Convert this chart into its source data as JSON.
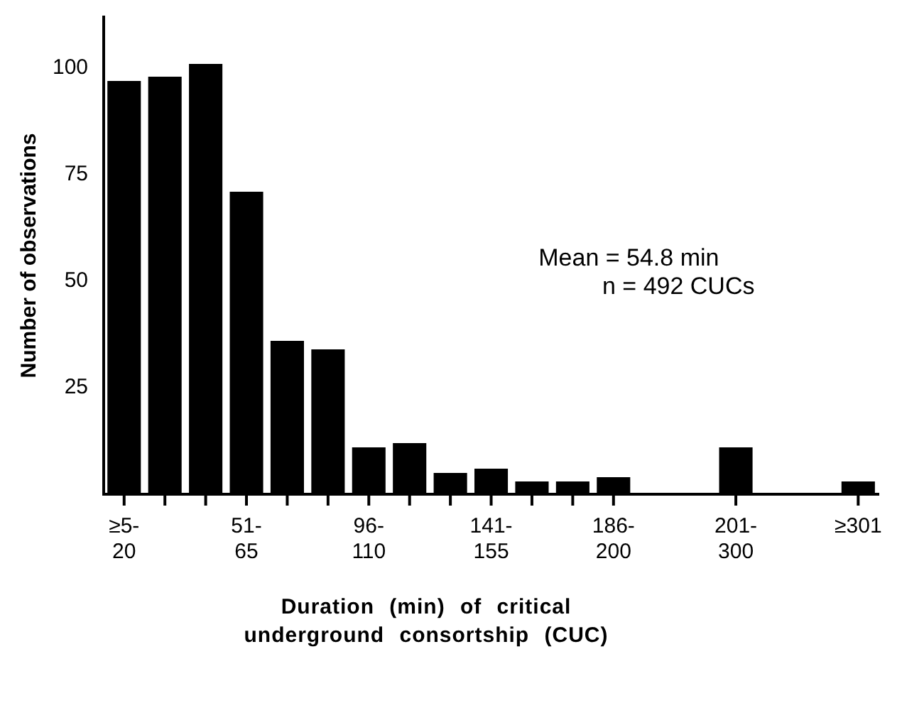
{
  "chart_data": {
    "type": "bar",
    "xlabel": "Duration (min) of critical underground consortship (CUC)",
    "ylabel": "Number of observations",
    "categories": [
      "≥5-20",
      null,
      null,
      "51-65",
      null,
      null,
      "96-110",
      null,
      null,
      "141-155",
      null,
      null,
      "186-200",
      null,
      null,
      "201-300",
      null,
      null,
      "≥301"
    ],
    "values": [
      97,
      98,
      101,
      71,
      36,
      34,
      11,
      12,
      5,
      6,
      3,
      3,
      4,
      null,
      null,
      11,
      null,
      null,
      3
    ],
    "color": "#000000",
    "ylim": [
      0,
      112
    ],
    "yticks": [
      25,
      50,
      75,
      100
    ],
    "grid": false,
    "legend": false,
    "annotations": [
      "Mean = 54.8 min",
      "n = 492 CUCs"
    ]
  }
}
